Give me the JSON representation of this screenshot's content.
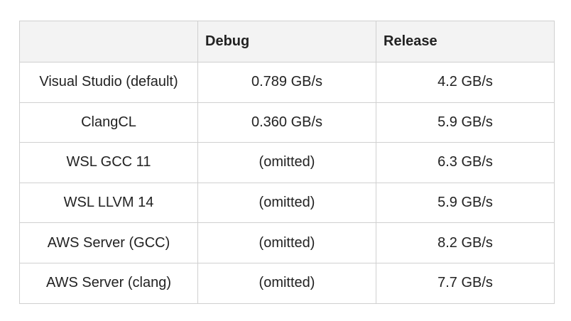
{
  "table": {
    "header": [
      "Debug",
      "Release"
    ],
    "rows": [
      [
        "Visual Studio (default)",
        "0.789 GB/s",
        "4.2 GB/s"
      ],
      [
        "ClangCL",
        "0.360 GB/s",
        "5.9 GB/s"
      ],
      [
        "WSL GCC 11",
        "(omitted)",
        "6.3 GB/s"
      ],
      [
        "WSL LLVM 14",
        "(omitted)",
        "5.9 GB/s"
      ],
      [
        "AWS Server (GCC)",
        "(omitted)",
        "8.2 GB/s"
      ],
      [
        "AWS Server (clang)",
        "(omitted)",
        "7.7 GB/s"
      ]
    ]
  }
}
